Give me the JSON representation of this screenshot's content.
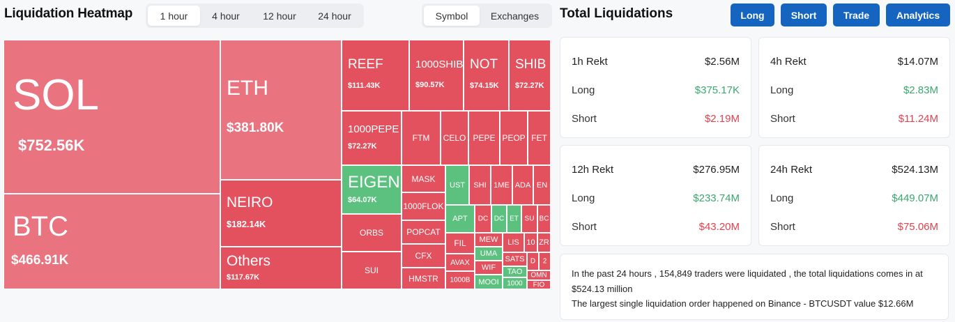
{
  "heatmap": {
    "title": "Liquidation Heatmap",
    "time_tabs": [
      "1 hour",
      "4 hour",
      "12 hour",
      "24 hour"
    ],
    "active_time_tab": "1 hour",
    "view_tabs": [
      "Symbol",
      "Exchanges"
    ],
    "active_view_tab": "Symbol",
    "colors": {
      "short_red": "#e4515e",
      "long_green": "#5cc17f",
      "large_pink": "#e9737f"
    },
    "tiles": [
      {
        "symbol": "SOL",
        "value": "$752.56K",
        "side": "short",
        "shade": "large"
      },
      {
        "symbol": "BTC",
        "value": "$466.91K",
        "side": "short",
        "shade": "large"
      },
      {
        "symbol": "ETH",
        "value": "$381.80K",
        "side": "short",
        "shade": "large"
      },
      {
        "symbol": "NEIRO",
        "value": "$182.14K",
        "side": "short"
      },
      {
        "symbol": "Others",
        "value": "$117.67K",
        "side": "short"
      },
      {
        "symbol": "REEF",
        "value": "$111.43K",
        "side": "short"
      },
      {
        "symbol": "1000SHIB",
        "value": "$90.57K",
        "side": "short"
      },
      {
        "symbol": "NOT",
        "value": "$74.15K",
        "side": "short"
      },
      {
        "symbol": "SHIB",
        "value": "$72.27K",
        "side": "short"
      },
      {
        "symbol": "1000PEPE",
        "value": "$72.27K",
        "side": "short"
      },
      {
        "symbol": "FTM",
        "side": "short"
      },
      {
        "symbol": "CELO",
        "side": "short"
      },
      {
        "symbol": "PEPE",
        "side": "short"
      },
      {
        "symbol": "PEOP",
        "side": "short"
      },
      {
        "symbol": "FET",
        "side": "short"
      },
      {
        "symbol": "EIGEN",
        "value": "$64.07K",
        "side": "long"
      },
      {
        "symbol": "MASK",
        "side": "short"
      },
      {
        "symbol": "1000FLOK",
        "side": "short"
      },
      {
        "symbol": "ORBS",
        "side": "short"
      },
      {
        "symbol": "POPCAT",
        "side": "short"
      },
      {
        "symbol": "CFX",
        "side": "short"
      },
      {
        "symbol": "SUI",
        "side": "short"
      },
      {
        "symbol": "HMSTR",
        "side": "short"
      },
      {
        "symbol": "UST",
        "side": "long"
      },
      {
        "symbol": "SHI",
        "side": "short"
      },
      {
        "symbol": "1ME",
        "side": "short"
      },
      {
        "symbol": "ADA",
        "side": "short"
      },
      {
        "symbol": "EN",
        "side": "short"
      },
      {
        "symbol": "APT",
        "side": "long"
      },
      {
        "symbol": "DC",
        "side": "short"
      },
      {
        "symbol": "DC",
        "side": "long"
      },
      {
        "symbol": "ET",
        "side": "long"
      },
      {
        "symbol": "SU",
        "side": "short"
      },
      {
        "symbol": "BC",
        "side": "short"
      },
      {
        "symbol": "FIL",
        "side": "short"
      },
      {
        "symbol": "MEW",
        "side": "short"
      },
      {
        "symbol": "LIS",
        "side": "short"
      },
      {
        "symbol": "10",
        "side": "short"
      },
      {
        "symbol": "ZR",
        "side": "short"
      },
      {
        "symbol": "UMA",
        "side": "long"
      },
      {
        "symbol": "AVAX",
        "side": "short"
      },
      {
        "symbol": "SATS",
        "side": "short"
      },
      {
        "symbol": "D",
        "side": "short"
      },
      {
        "symbol": "2",
        "side": "short"
      },
      {
        "symbol": "WIF",
        "side": "short"
      },
      {
        "symbol": "TAO",
        "side": "long"
      },
      {
        "symbol": "OMN",
        "side": "short"
      },
      {
        "symbol": "1000B",
        "side": "short"
      },
      {
        "symbol": "MOOI",
        "side": "long"
      },
      {
        "symbol": "1000",
        "side": "long"
      },
      {
        "symbol": "FIO",
        "side": "short"
      }
    ]
  },
  "totals": {
    "title": "Total Liquidations",
    "buttons": [
      "Long",
      "Short",
      "Trade",
      "Analytics"
    ],
    "cards": [
      {
        "label": "1h Rekt",
        "total": "$2.56M",
        "long_label": "Long",
        "long": "$375.17K",
        "short_label": "Short",
        "short": "$2.19M"
      },
      {
        "label": "4h Rekt",
        "total": "$14.07M",
        "long_label": "Long",
        "long": "$2.83M",
        "short_label": "Short",
        "short": "$11.24M"
      },
      {
        "label": "12h Rekt",
        "total": "$276.95M",
        "long_label": "Long",
        "long": "$233.74M",
        "short_label": "Short",
        "short": "$43.20M"
      },
      {
        "label": "24h Rekt",
        "total": "$524.13M",
        "long_label": "Long",
        "long": "$449.07M",
        "short_label": "Short",
        "short": "$75.06M"
      }
    ],
    "summary_line1": "In the past 24 hours , 154,849 traders were liquidated , the total liquidations comes in at $524.13 million",
    "summary_line2": "The largest single liquidation order happened on Binance - BTCUSDT value $12.66M"
  }
}
